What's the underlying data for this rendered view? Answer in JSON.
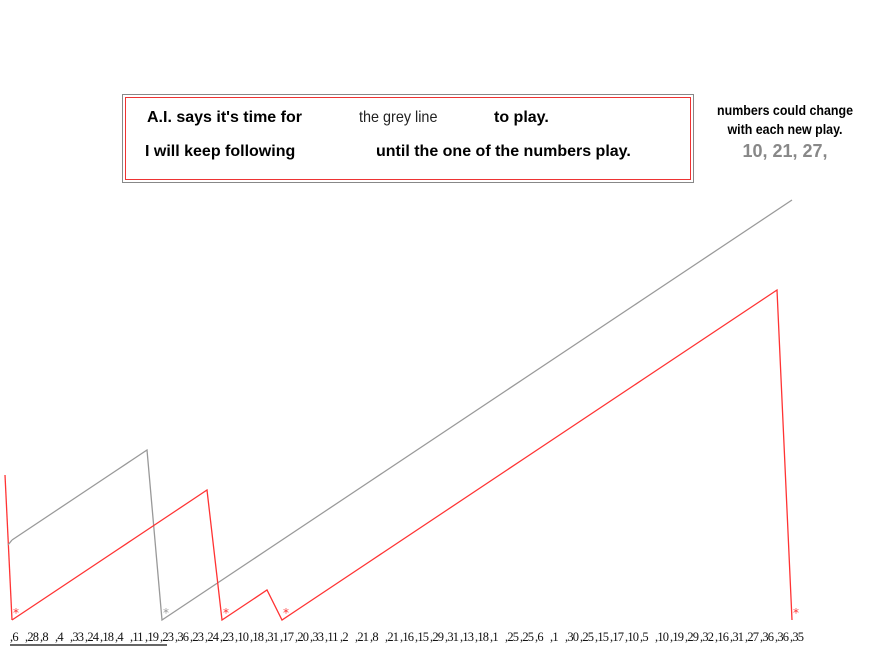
{
  "message": {
    "line1_a": "A.I. says it's time for",
    "line1_b": "the grey line",
    "line1_c": "to play.",
    "line2_a": "I will keep following",
    "line2_b": "until the one of the numbers play."
  },
  "note": {
    "text": "numbers could change with each new play.",
    "numbers": "10,  21, 27,"
  },
  "colors": {
    "red_series": "#ff3333",
    "grey_series": "#999999"
  },
  "chart_data": {
    "type": "line",
    "categories": [
      6,
      28,
      8,
      4,
      33,
      24,
      18,
      4,
      11,
      19,
      23,
      36,
      23,
      24,
      23,
      10,
      18,
      31,
      17,
      20,
      33,
      11,
      2,
      21,
      8,
      21,
      16,
      15,
      29,
      31,
      13,
      18,
      1,
      25,
      25,
      6,
      1,
      30,
      25,
      15,
      17,
      10,
      5,
      10,
      19,
      29,
      32,
      16,
      31,
      27,
      36,
      36,
      35
    ],
    "underlined_count": 10,
    "series": [
      {
        "color": "red",
        "values": [
          0,
          1,
          2,
          3,
          4,
          5,
          6,
          7,
          8,
          9,
          10,
          11,
          12,
          13,
          0,
          1,
          2,
          3,
          0,
          1,
          2,
          3,
          4,
          5,
          6,
          7,
          8,
          9,
          10,
          11,
          12,
          13,
          14,
          15,
          16,
          17,
          18,
          19,
          20,
          21,
          22,
          23,
          24,
          25,
          26,
          27,
          28,
          29,
          30,
          31,
          32,
          33,
          0
        ],
        "marker_at_zero": "*"
      },
      {
        "color": "grey",
        "values": [
          8,
          9,
          10,
          11,
          12,
          13,
          14,
          15,
          16,
          17,
          0,
          1,
          2,
          3,
          4,
          5,
          6,
          7,
          8,
          9,
          10,
          11,
          12,
          13,
          14,
          15,
          16,
          17,
          18,
          19,
          20,
          21,
          22,
          23,
          24,
          25,
          26,
          27,
          28,
          29,
          30,
          31,
          32,
          33,
          34,
          35,
          36,
          37,
          38,
          39,
          40,
          41,
          42
        ],
        "marker_at_zero": "*"
      }
    ],
    "grid": false
  }
}
